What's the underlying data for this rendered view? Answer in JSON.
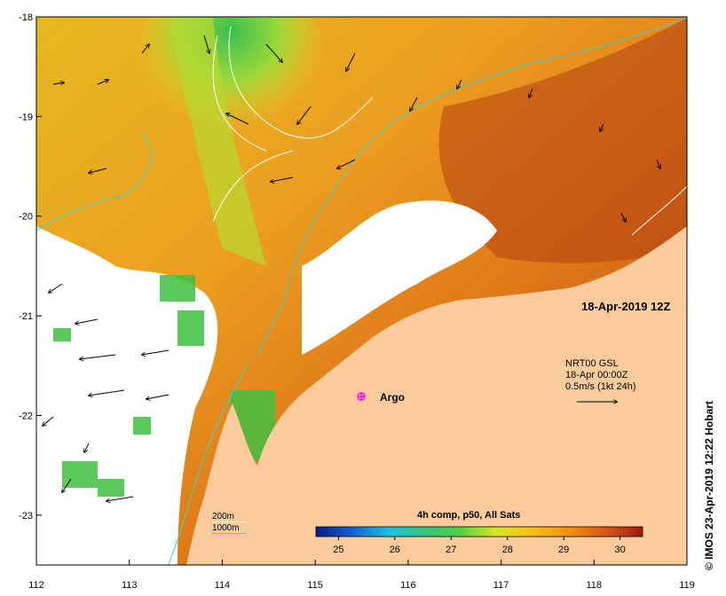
{
  "map": {
    "lon_ticks": [
      "112",
      "113",
      "114",
      "115",
      "116",
      "117",
      "118",
      "119"
    ],
    "lat_ticks": [
      "-18",
      "-19",
      "-20",
      "-21",
      "-22",
      "-23"
    ],
    "lon_range": [
      112,
      119
    ],
    "lat_range": [
      -23.5,
      -18
    ],
    "date_label": "18-Apr-2019 12Z",
    "argo_label": "Argo",
    "reference_vector": {
      "line1": "NRT00 GSL",
      "line2": "18-Apr 00:00Z",
      "line3": "0.5m/s (1kt 24h)"
    },
    "contour_legend": [
      {
        "label": "200m",
        "color": "#ffffff"
      },
      {
        "label": "1000m",
        "color": "#40d0d0"
      }
    ],
    "colorbar": {
      "title": "4h comp, p50, All Sats",
      "ticks": [
        "25",
        "26",
        "27",
        "28",
        "29",
        "30"
      ],
      "range": [
        24.6,
        30.4
      ],
      "colors": [
        "#081a8a",
        "#1060d8",
        "#20c0e0",
        "#30c880",
        "#70d030",
        "#d8e820",
        "#f8c010",
        "#f09010",
        "#d85010",
        "#a01808"
      ]
    },
    "copyright": "© IMOS 23-Apr-2019 12:22 Hobart",
    "colors": {
      "land": "#fbcb9c",
      "cloud": "#ffffff",
      "warm_sst": "#e88a18",
      "hot_sst": "#c04a10",
      "cool_sst": "#50c840",
      "mid_sst": "#e8c020",
      "argo_marker": "#ff00ff"
    }
  }
}
